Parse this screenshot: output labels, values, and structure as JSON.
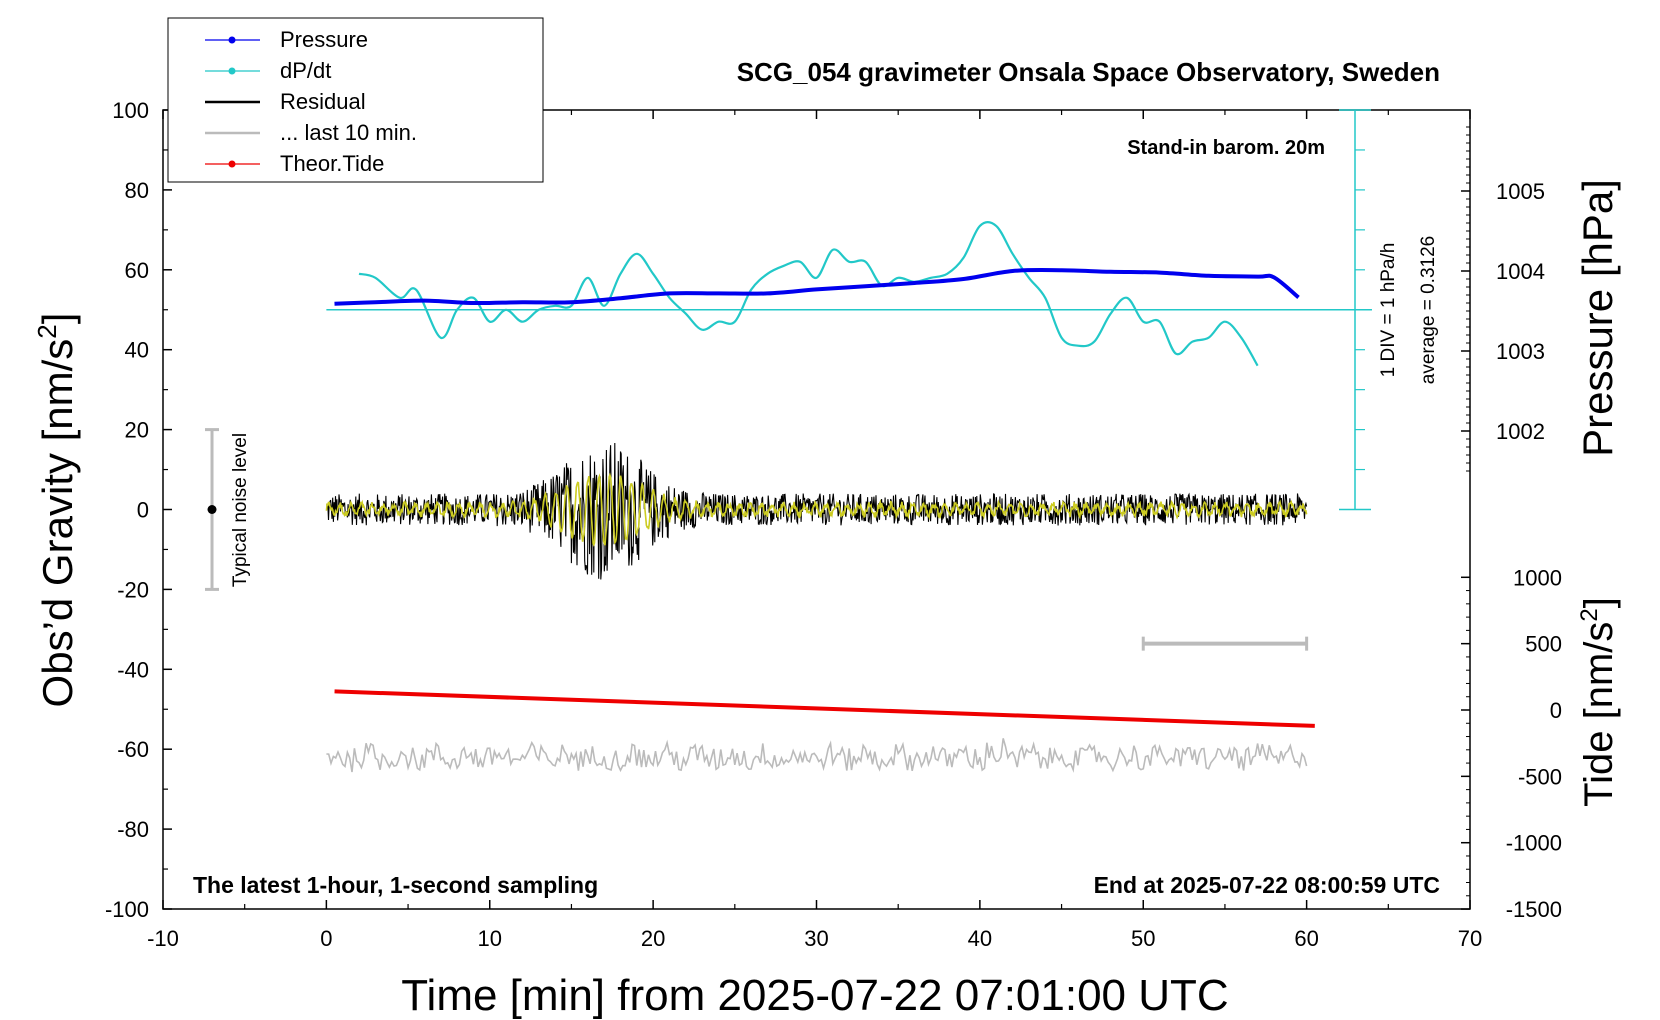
{
  "chart_data": {
    "type": "line",
    "title": "SCG_054 gravimeter Onsala Space Observatory, Sweden",
    "xlabel": "Time [min] from 2025-07-22 07:01:00 UTC",
    "ylabel": "Obs’d Gravity [nm/s",
    "ylabel_sup": "2",
    "ylabel_tail": "]",
    "y2label": "Pressure [hPa]",
    "y3label": "Tide [nm/s",
    "y3label_sup": "2",
    "y3label_tail": "]",
    "xlim": [
      -10,
      70
    ],
    "ylim": [
      -100,
      100
    ],
    "x_ticks": [
      "-10",
      "0",
      "10",
      "20",
      "30",
      "40",
      "50",
      "60",
      "70"
    ],
    "y_ticks": [
      "100",
      "80",
      "60",
      "40",
      "20",
      "0",
      "-20",
      "-40",
      "-60",
      "-80",
      "-100"
    ],
    "pressure_ticks": [
      "1005",
      "1004",
      "1003",
      "1002"
    ],
    "tide_ticks": [
      "1000",
      "500",
      "0",
      "-500",
      "-1000",
      "-1500"
    ],
    "annotations": {
      "barom": "Stand-in barom. 20m",
      "div": "1 DIV = 1 hPa/h",
      "average": "average = 0.3126",
      "noise": "Typical noise level",
      "latest": "The latest 1-hour, 1-second sampling",
      "end": "End at 2025-07-22 08:00:59 UTC"
    },
    "legend_position": "top-left",
    "legend": [
      {
        "label": "Pressure",
        "color": "#0000ee",
        "marker": true
      },
      {
        "label": "dP/dt",
        "color": "#22c8c8",
        "marker": true
      },
      {
        "label": "Residual",
        "color": "#000000",
        "marker": false
      },
      {
        "label": "... last 10 min.",
        "color": "#bbbbbb",
        "marker": false
      },
      {
        "label": "Theor.Tide",
        "color": "#ee0000",
        "marker": true
      }
    ],
    "series": [
      {
        "name": "Pressure",
        "axis": "hPa",
        "x": [
          0.5,
          3,
          6,
          9,
          12,
          15,
          18,
          21,
          24,
          27,
          30,
          33,
          36,
          39,
          42,
          45,
          48,
          51,
          54,
          57,
          58,
          59.5
        ],
        "values": [
          1003.59,
          1003.61,
          1003.63,
          1003.6,
          1003.61,
          1003.61,
          1003.66,
          1003.72,
          1003.72,
          1003.72,
          1003.77,
          1003.81,
          1003.85,
          1003.9,
          1004.0,
          1004.01,
          1003.99,
          1003.98,
          1003.94,
          1003.93,
          1003.92,
          1003.67
        ]
      },
      {
        "name": "dP/dt",
        "axis": "gravity_scale",
        "x": [
          2,
          3,
          4.5,
          5.5,
          7,
          8,
          9,
          10,
          11,
          12,
          13,
          14,
          15,
          16,
          17,
          18,
          19,
          20,
          21,
          22,
          23,
          24,
          25,
          26,
          27,
          28,
          29,
          30,
          31,
          32,
          33,
          34,
          35,
          36,
          37,
          38,
          39,
          40,
          41,
          42,
          43,
          44,
          45,
          46,
          47,
          48,
          49,
          50,
          51,
          52,
          53,
          54,
          55,
          56,
          57
        ],
        "values": [
          59,
          58,
          53,
          55,
          43,
          50,
          53,
          47,
          50,
          47,
          50,
          51,
          51,
          58,
          51,
          59,
          64,
          59,
          53,
          49,
          45,
          47,
          47,
          55,
          59,
          61,
          62,
          58,
          65,
          62,
          62,
          56,
          58,
          57,
          58,
          59,
          63,
          71,
          71,
          64,
          58,
          53,
          43,
          41,
          42,
          49,
          53,
          47,
          47,
          39,
          42,
          43,
          47,
          43,
          36
        ]
      },
      {
        "name": "Residual",
        "x_start": 0,
        "x_end": 60,
        "noise_amplitude": 4,
        "burst_center": 17,
        "burst_amplitude": 14
      },
      {
        "name": "... last 10 min.",
        "x_start": 0,
        "x_end": 60,
        "level": -62,
        "amplitude": 3
      },
      {
        "name": "Theor.Tide",
        "axis": "tide",
        "x": [
          0.5,
          60.5
        ],
        "values": [
          140,
          -120
        ]
      }
    ],
    "dpdt_baseline": 50,
    "noise_bar": {
      "x": -7,
      "y": 0,
      "half_range": 20
    },
    "gray_scale_bar": {
      "x": [
        50,
        60
      ],
      "tide_level": 500
    }
  }
}
